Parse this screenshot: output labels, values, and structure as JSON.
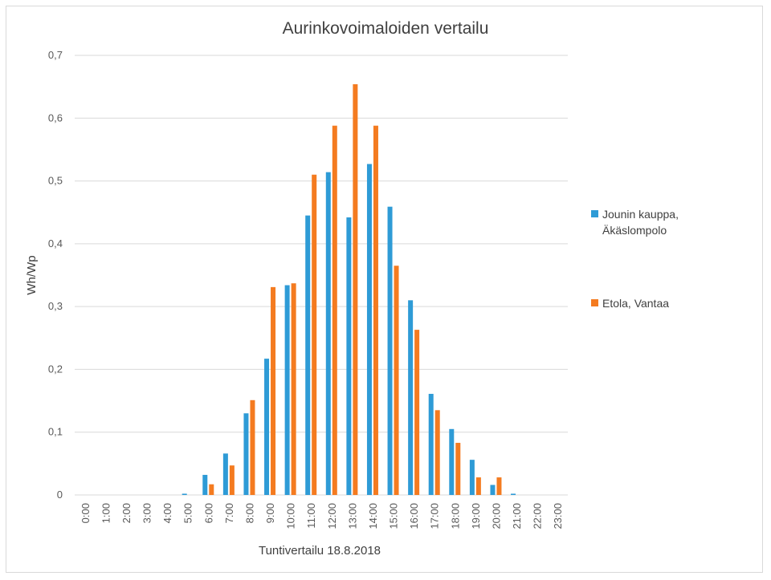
{
  "chart_data": {
    "type": "bar",
    "title": "Aurinkovoimaloiden vertailu",
    "xlabel": "Tuntivertailu 18.8.2018",
    "ylabel": "Wh/Wp",
    "ylim": [
      0,
      0.7
    ],
    "yticks": [
      "0",
      "0,1",
      "0,2",
      "0,3",
      "0,4",
      "0,5",
      "0,6",
      "0,7"
    ],
    "grid": true,
    "legend_position": "right",
    "categories": [
      "0:00",
      "1:00",
      "2:00",
      "3:00",
      "4:00",
      "5:00",
      "6:00",
      "7:00",
      "8:00",
      "9:00",
      "10:00",
      "11:00",
      "12:00",
      "13:00",
      "14:00",
      "15:00",
      "16:00",
      "17:00",
      "18:00",
      "19:00",
      "20:00",
      "21:00",
      "22:00",
      "23:00"
    ],
    "series": [
      {
        "name_lines": [
          "Jounin kauppa,",
          "Äkäslompolo"
        ],
        "color": "#2E9BD6",
        "values": [
          0,
          0,
          0,
          0,
          0,
          0.002,
          0.032,
          0.066,
          0.13,
          0.217,
          0.334,
          0.445,
          0.514,
          0.442,
          0.527,
          0.459,
          0.31,
          0.161,
          0.105,
          0.056,
          0.016,
          0.002,
          0,
          0
        ]
      },
      {
        "name_lines": [
          "Etola, Vantaa"
        ],
        "color": "#F47B20",
        "values": [
          0,
          0,
          0,
          0,
          0,
          0,
          0.017,
          0.047,
          0.151,
          0.331,
          0.337,
          0.51,
          0.588,
          0.654,
          0.588,
          0.365,
          0.263,
          0.135,
          0.083,
          0.028,
          0.028,
          0,
          0,
          0
        ]
      }
    ]
  }
}
